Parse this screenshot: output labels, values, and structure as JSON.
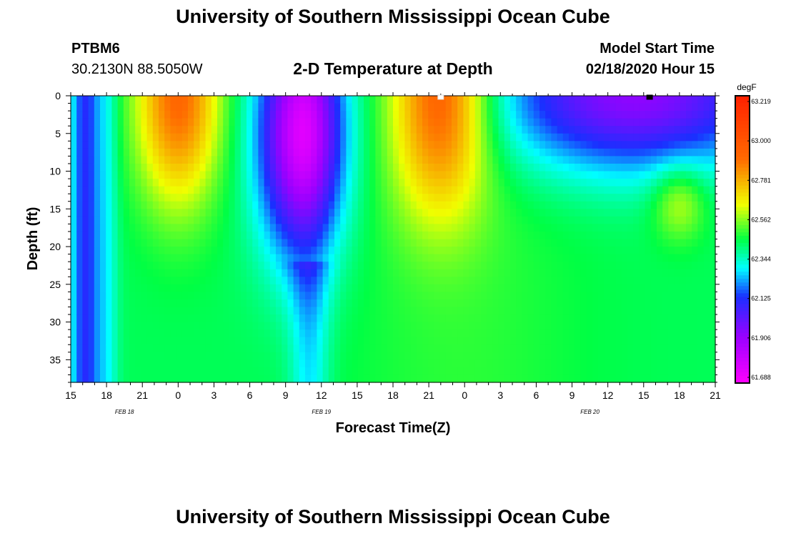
{
  "header": {
    "title": "University of Southern Mississippi Ocean Cube",
    "station_id": "PTBM6",
    "station_coords": "30.2130N 88.5050W",
    "plot_title": "2-D Temperature at Depth",
    "model_start_label": "Model Start Time",
    "model_start_value": "02/18/2020 Hour 15"
  },
  "footer": {
    "title": "University of Southern Mississippi Ocean Cube"
  },
  "chart_data": {
    "type": "heatmap",
    "title": "2-D Temperature at Depth",
    "xlabel": "Forecast Time(Z)",
    "ylabel": "Depth (ft)",
    "x_tick_labels": [
      "15",
      "18",
      "21",
      "0",
      "3",
      "6",
      "9",
      "12",
      "15",
      "18",
      "21",
      "0",
      "3",
      "6",
      "9",
      "12",
      "15",
      "18",
      "21"
    ],
    "x_range_hours": [
      0,
      54
    ],
    "date_labels": [
      {
        "text": "FEB 18",
        "hour": 4.5
      },
      {
        "text": "FEB 19",
        "hour": 21
      },
      {
        "text": "FEB 20",
        "hour": 43.5
      }
    ],
    "y_ticks": [
      0,
      5,
      10,
      15,
      20,
      25,
      30,
      35
    ],
    "y_tick_labels": [
      "0",
      "5",
      "10",
      "15",
      "20",
      "25",
      "30",
      "35"
    ],
    "ylim": [
      0,
      38
    ],
    "y_inverted": true,
    "colorbar": {
      "unit": "degF",
      "ticks": [
        "63.219",
        "63.000",
        "62.781",
        "62.562",
        "62.344",
        "62.125",
        "61.906",
        "61.688"
      ],
      "range": [
        61.688,
        63.219
      ]
    },
    "colors": {
      "warm_max": "#ff2000",
      "orange": "#ff6a00",
      "yellow": "#f0ff00",
      "green": "#00ff44",
      "cyan": "#00ffff",
      "blue": "#1a2fff",
      "violet": "#9a00ff",
      "magenta": "#ff00ff"
    },
    "grid": false,
    "surface_markers": [
      {
        "hour": 31,
        "color": "#ffffff"
      },
      {
        "hour": 48.5,
        "color": "#000000"
      }
    ]
  }
}
